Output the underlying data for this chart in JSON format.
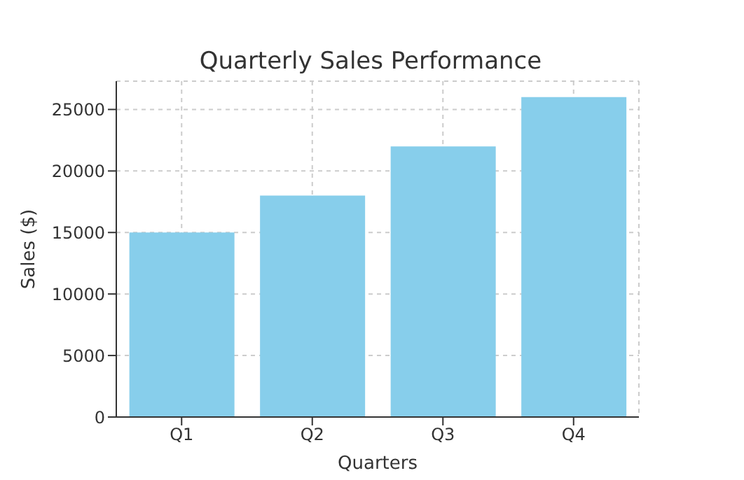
{
  "chart_data": {
    "type": "bar",
    "title": "Quarterly Sales Performance",
    "xlabel": "Quarters",
    "ylabel": "Sales ($)",
    "categories": [
      "Q1",
      "Q2",
      "Q3",
      "Q4"
    ],
    "values": [
      15000,
      18000,
      22000,
      26000
    ],
    "color": "#87ceeb",
    "ylim": [
      0,
      27300
    ],
    "yticks": [
      0,
      5000,
      10000,
      15000,
      20000,
      25000
    ],
    "grid": true
  }
}
